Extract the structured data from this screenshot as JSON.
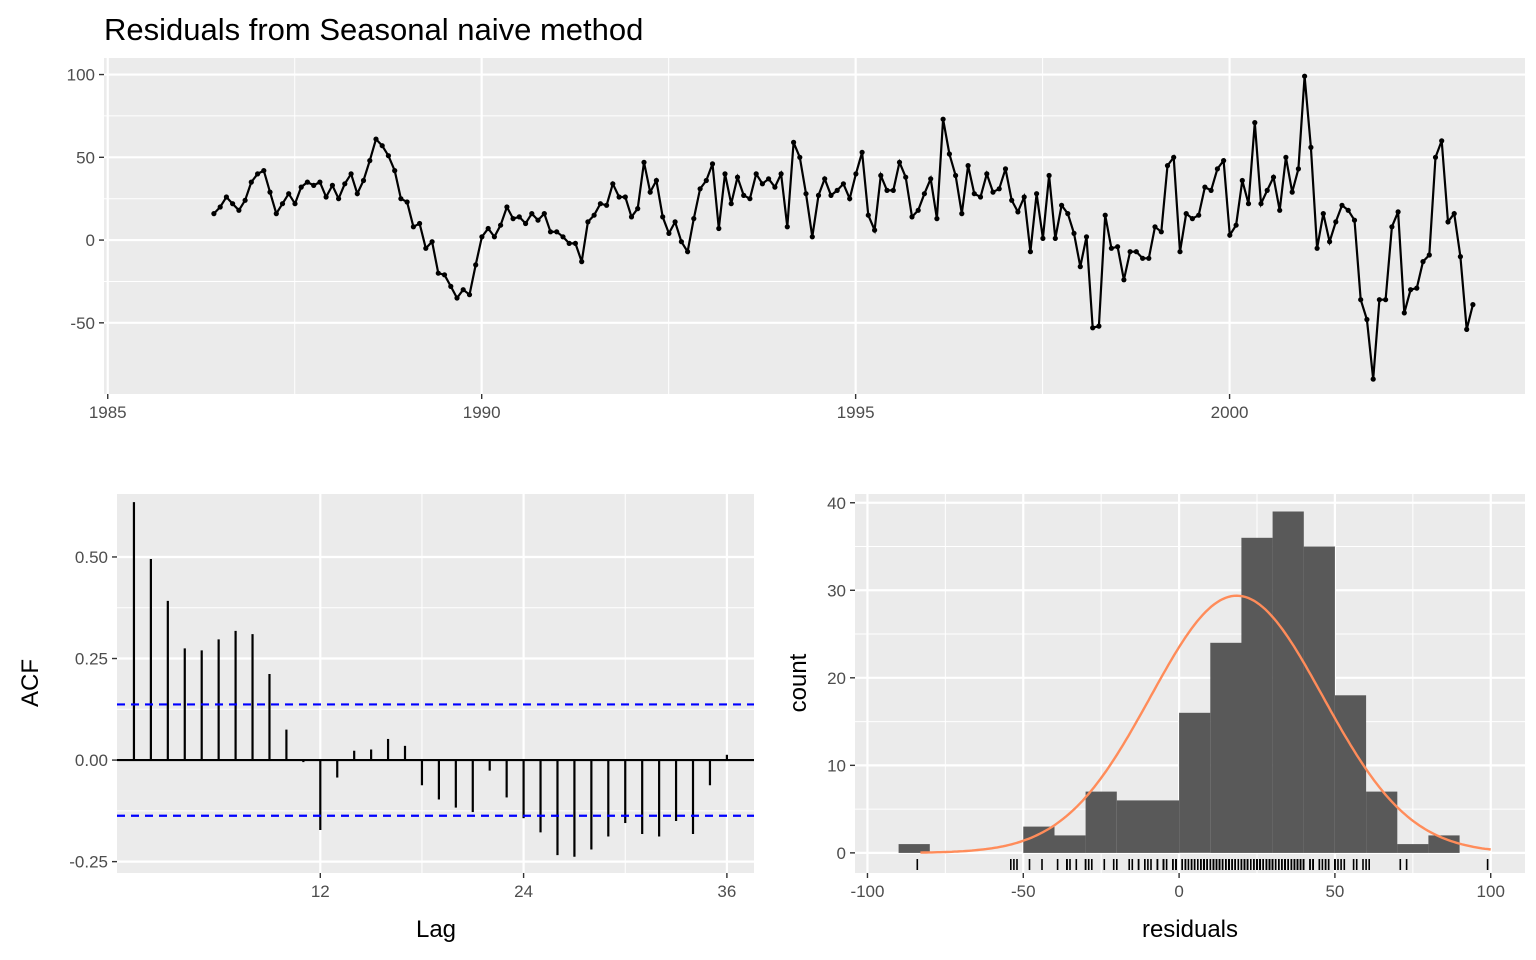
{
  "title": "Residuals from Seasonal naive method",
  "colors": {
    "panel": "#ebebeb",
    "grid": "#ffffff",
    "series": "#000000",
    "ci": "#0000ff",
    "bar": "#595959",
    "density": "#ff8c5a"
  },
  "chart_data": [
    {
      "type": "line",
      "name": "residual-series",
      "xlim": [
        1984.95,
        2003.95
      ],
      "ylim": [
        -93,
        110
      ],
      "xticks": [
        1985,
        1990,
        1995,
        2000
      ],
      "xtick_labels": [
        "1985",
        "1990",
        "1995",
        "2000"
      ],
      "yticks": [
        -50,
        0,
        50,
        100
      ],
      "ytick_labels": [
        "-50",
        "0",
        "50",
        "100"
      ],
      "xlabel": "",
      "ylabel": "",
      "start": 1986.42,
      "step": 0.08333333,
      "values": [
        16,
        20,
        26,
        22,
        18,
        24,
        35,
        40,
        42,
        29,
        16,
        22,
        28,
        22,
        32,
        35,
        33,
        35,
        26,
        33,
        25,
        34,
        40,
        28,
        36,
        48,
        61,
        57,
        51,
        42,
        25,
        23,
        8,
        10,
        -5,
        -1,
        -20,
        -21,
        -28,
        -35,
        -30,
        -33,
        -15,
        2,
        7,
        2,
        9,
        20,
        13,
        14,
        10,
        16,
        12,
        16,
        5,
        5,
        2,
        -2,
        -2,
        -13,
        11,
        15,
        22,
        21,
        34,
        26,
        26,
        14,
        19,
        47,
        29,
        36,
        14,
        4,
        11,
        -1,
        -7,
        13,
        31,
        36,
        46,
        7,
        40,
        22,
        38,
        27,
        25,
        40,
        34,
        37,
        32,
        40,
        8,
        59,
        50,
        28,
        2,
        27,
        37,
        27,
        30,
        34,
        25,
        40,
        53,
        15,
        6,
        39,
        30,
        30,
        47,
        38,
        14,
        18,
        28,
        37,
        13,
        73,
        52,
        39,
        16,
        45,
        28,
        26,
        40,
        29,
        31,
        43,
        24,
        17,
        26,
        -7,
        28,
        1,
        39,
        1,
        21,
        16,
        4,
        -16,
        2,
        -53,
        -52,
        15,
        -5,
        -4,
        -24,
        -7,
        -7,
        -11,
        -11,
        8,
        5,
        45,
        50,
        -7,
        16,
        13,
        15,
        32,
        30,
        43,
        48,
        3,
        9,
        36,
        22,
        71,
        22,
        30,
        38,
        18,
        50,
        29,
        43,
        99,
        56,
        -5,
        16,
        -1,
        11,
        21,
        18,
        12,
        -36,
        -48,
        -84,
        -36,
        -36,
        8,
        17,
        -44,
        -30,
        -29,
        -13,
        -9,
        50,
        60,
        11,
        16,
        -10,
        -54,
        -39
      ]
    },
    {
      "type": "bar",
      "name": "acf",
      "xlabel": "Lag",
      "ylabel": "ACF",
      "xlim": [
        0,
        37.6
      ],
      "ylim": [
        -0.278,
        0.655
      ],
      "xticks": [
        12,
        24,
        36
      ],
      "xtick_labels": [
        "12",
        "24",
        "36"
      ],
      "yticks": [
        -0.25,
        0,
        0.25,
        0.5
      ],
      "ytick_labels": [
        "-0.25",
        "0.00",
        "0.25",
        "0.50"
      ],
      "ci": 0.137,
      "lags": [
        1,
        2,
        3,
        4,
        5,
        6,
        7,
        8,
        9,
        10,
        11,
        12,
        13,
        14,
        15,
        16,
        17,
        18,
        19,
        20,
        21,
        22,
        23,
        24,
        25,
        26,
        27,
        28,
        29,
        30,
        31,
        32,
        33,
        34,
        35,
        36
      ],
      "values": [
        0.635,
        0.495,
        0.392,
        0.275,
        0.27,
        0.297,
        0.318,
        0.31,
        0.212,
        0.075,
        -0.005,
        -0.172,
        -0.043,
        0.023,
        0.026,
        0.052,
        0.035,
        -0.062,
        -0.097,
        -0.117,
        -0.128,
        -0.026,
        -0.092,
        -0.143,
        -0.178,
        -0.234,
        -0.238,
        -0.22,
        -0.188,
        -0.155,
        -0.182,
        -0.188,
        -0.15,
        -0.182,
        -0.062,
        0.013
      ]
    },
    {
      "type": "bar",
      "name": "histogram",
      "xlabel": "residuals",
      "ylabel": "count",
      "xlim": [
        -104,
        111
      ],
      "ylim": [
        -2.3,
        41
      ],
      "xticks": [
        -100,
        -50,
        0,
        50,
        100
      ],
      "xtick_labels": [
        "-100",
        "-50",
        "0",
        "50",
        "100"
      ],
      "yticks": [
        0,
        10,
        20,
        30,
        40
      ],
      "ytick_labels": [
        "0",
        "10",
        "20",
        "30",
        "40"
      ],
      "bin_edges": [
        -90,
        -80,
        -70,
        -60,
        -50,
        -40,
        -30,
        -20,
        -10,
        0,
        10,
        20,
        30,
        40,
        50,
        60,
        70,
        80,
        90,
        100
      ],
      "counts": [
        1,
        0,
        0,
        0,
        3,
        2,
        7,
        6,
        6,
        16,
        24,
        36,
        39,
        35,
        18,
        7,
        1,
        2,
        0,
        1
      ],
      "density_mean": 18.5,
      "density_sd": 27.7,
      "density_range": [
        -83,
        100
      ],
      "rug_note": "rug marks at residual values"
    }
  ]
}
